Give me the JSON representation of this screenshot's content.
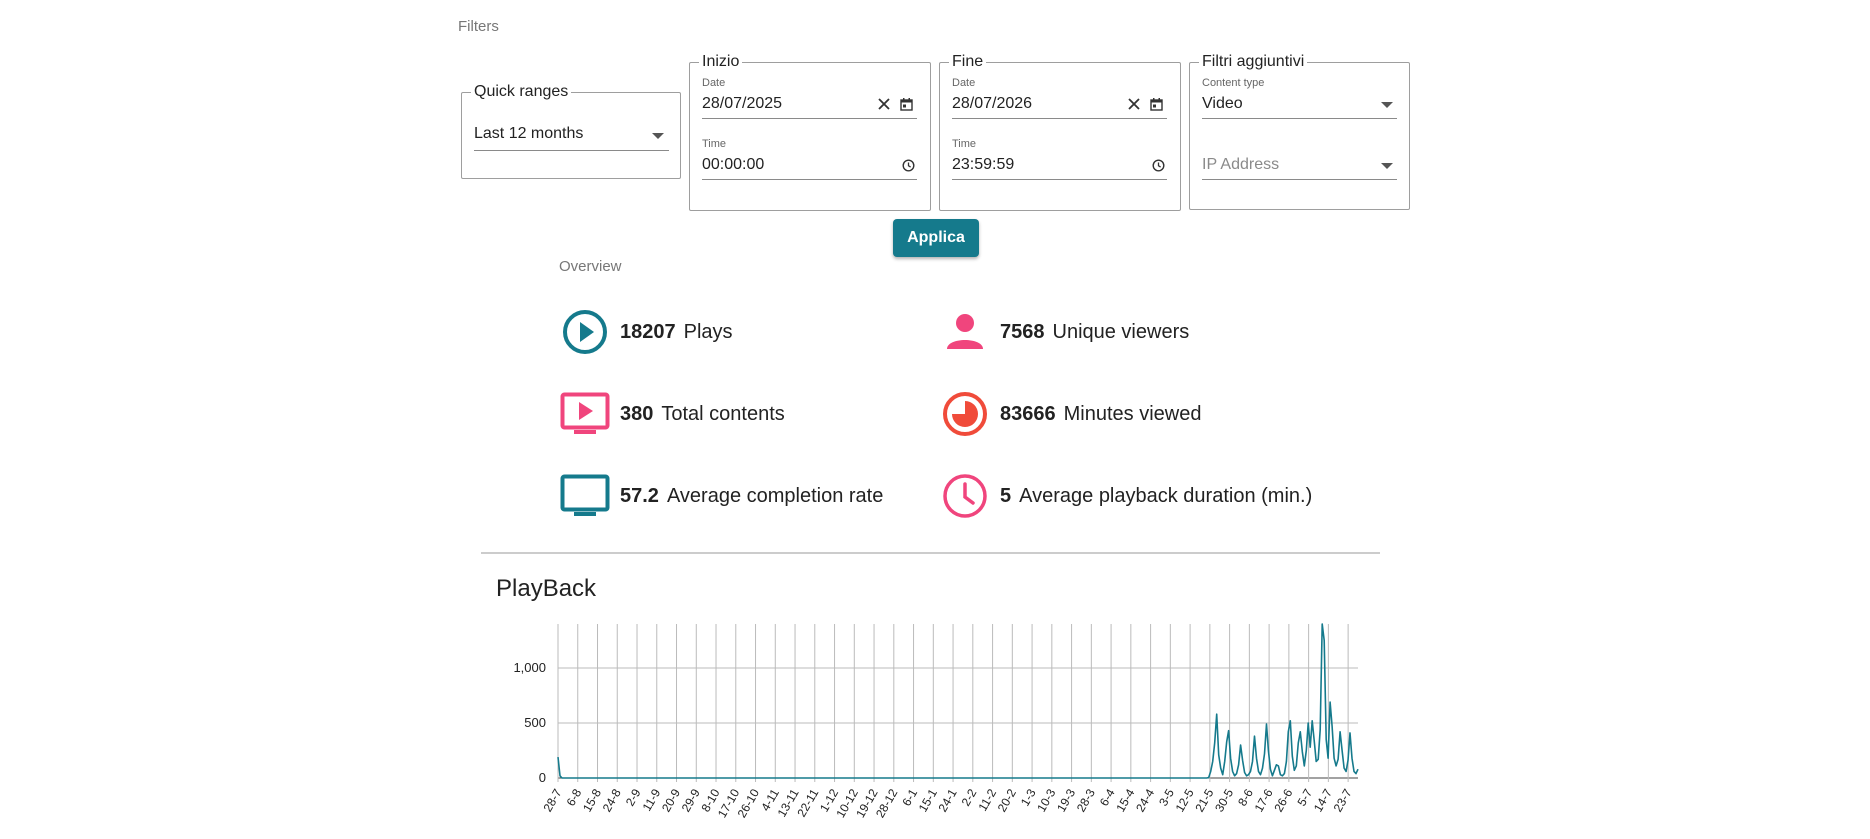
{
  "filters": {
    "title": "Filters",
    "quick_ranges": {
      "legend": "Quick ranges",
      "value": "Last 12 months"
    },
    "start": {
      "legend": "Inizio",
      "date_label": "Date",
      "date_value": "28/07/2025",
      "time_label": "Time",
      "time_value": "00:00:00"
    },
    "end": {
      "legend": "Fine",
      "date_label": "Date",
      "date_value": "28/07/2026",
      "time_label": "Time",
      "time_value": "23:59:59"
    },
    "extra": {
      "legend": "Filtri aggiuntivi",
      "content_type_label": "Content type",
      "content_type_value": "Video",
      "ip_placeholder": "IP Address"
    },
    "apply_label": "Applica"
  },
  "overview": {
    "title": "Overview",
    "stats": [
      {
        "value": "18207",
        "label": "Plays",
        "icon": "play-circle-icon",
        "color": "#157a8c"
      },
      {
        "value": "7568",
        "label": "Unique viewers",
        "icon": "person-icon",
        "color": "#f0457d"
      },
      {
        "value": "380",
        "label": "Total contents",
        "icon": "tv-play-icon",
        "color": "#f0457d"
      },
      {
        "value": "83666",
        "label": "Minutes viewed",
        "icon": "pie-timer-icon",
        "color": "#f04b3a"
      },
      {
        "value": "57.2",
        "label": "Average completion rate",
        "icon": "monitor-icon",
        "color": "#157a8c"
      },
      {
        "value": "5",
        "label": "Average playback duration (min.)",
        "icon": "clock-icon",
        "color": "#f0457d"
      }
    ]
  },
  "chart_data": {
    "type": "line",
    "title": "PlayBack",
    "color": "#157a8c",
    "ylim": [
      0,
      1400
    ],
    "yticks": [
      0,
      500,
      1000
    ],
    "ytick_labels": [
      "0",
      "500",
      "1,000"
    ],
    "grid": true,
    "xlabels": [
      "28-7",
      "6-8",
      "15-8",
      "24-8",
      "2-9",
      "11-9",
      "20-9",
      "29-9",
      "8-10",
      "17-10",
      "26-10",
      "4-11",
      "13-11",
      "22-11",
      "1-12",
      "10-12",
      "19-12",
      "28-12",
      "6-1",
      "15-1",
      "24-1",
      "2-2",
      "11-2",
      "20-2",
      "1-3",
      "10-3",
      "19-3",
      "28-3",
      "6-4",
      "15-4",
      "24-4",
      "3-5",
      "12-5",
      "21-5",
      "30-5",
      "8-6",
      "17-6",
      "26-6",
      "5-7",
      "14-7",
      "23-7"
    ],
    "series": [
      {
        "values": [
          190,
          20,
          0,
          0,
          0,
          0,
          0,
          0,
          0,
          0,
          0,
          0,
          0,
          0,
          0,
          0,
          0,
          0,
          0,
          0,
          0,
          0,
          0,
          0,
          0,
          0,
          0,
          0,
          0,
          0,
          0,
          0,
          0,
          0,
          0,
          0,
          0,
          0,
          0,
          0,
          0,
          0,
          0,
          0,
          0,
          0,
          0,
          0,
          0,
          0,
          0,
          0,
          0,
          0,
          0,
          0,
          0,
          0,
          0,
          0,
          0,
          0,
          0,
          0,
          0,
          0,
          0,
          0,
          0,
          0,
          0,
          0,
          0,
          0,
          0,
          0,
          0,
          0,
          0,
          0,
          0,
          0,
          0,
          0,
          0,
          0,
          0,
          0,
          0,
          0,
          0,
          0,
          0,
          0,
          0,
          0,
          0,
          0,
          0,
          0,
          0,
          0,
          0,
          0,
          0,
          0,
          0,
          0,
          0,
          0,
          0,
          0,
          0,
          0,
          0,
          0,
          0,
          0,
          0,
          0,
          0,
          0,
          0,
          0,
          0,
          0,
          0,
          0,
          0,
          0,
          0,
          0,
          0,
          0,
          0,
          0,
          0,
          0,
          0,
          0,
          0,
          0,
          0,
          0,
          0,
          0,
          0,
          0,
          0,
          0,
          0,
          0,
          0,
          0,
          0,
          0,
          0,
          0,
          0,
          0,
          0,
          0,
          0,
          0,
          0,
          0,
          0,
          0,
          0,
          0,
          0,
          0,
          0,
          0,
          0,
          0,
          0,
          0,
          0,
          0,
          0,
          0,
          0,
          0,
          0,
          0,
          0,
          0,
          0,
          0,
          0,
          0,
          0,
          0,
          0,
          0,
          0,
          0,
          0,
          0,
          0,
          0,
          0,
          0,
          0,
          0,
          0,
          0,
          0,
          0,
          0,
          0,
          0,
          0,
          0,
          0,
          0,
          0,
          0,
          0,
          0,
          0,
          0,
          0,
          0,
          0,
          0,
          0,
          0,
          0,
          0,
          0,
          0,
          0,
          0,
          0,
          0,
          0,
          0,
          0,
          0,
          0,
          0,
          0,
          0,
          0,
          0,
          0,
          0,
          0,
          0,
          0,
          0,
          0,
          0,
          0,
          0,
          0,
          0,
          0,
          0,
          0,
          0,
          0,
          0,
          0,
          0,
          0,
          0,
          0,
          0,
          0,
          0,
          0,
          0,
          0,
          0,
          0,
          0,
          0,
          0,
          0,
          0,
          0,
          0,
          0,
          0,
          0,
          0,
          0,
          0,
          0,
          0,
          0,
          0,
          0,
          0,
          0,
          0,
          0,
          0,
          0,
          0,
          0,
          0,
          0,
          0,
          0,
          0,
          0,
          0,
          0,
          0,
          0,
          0,
          0,
          0,
          0,
          0,
          0,
          0,
          0,
          0,
          0,
          0,
          0,
          0,
          5,
          60,
          150,
          320,
          580,
          210,
          90,
          30,
          150,
          330,
          430,
          180,
          60,
          20,
          40,
          120,
          300,
          160,
          50,
          20,
          30,
          60,
          150,
          380,
          180,
          60,
          30,
          90,
          220,
          490,
          250,
          80,
          20,
          70,
          120,
          110,
          30,
          20,
          40,
          150,
          420,
          520,
          200,
          70,
          110,
          320,
          420,
          240,
          110,
          250,
          500,
          280,
          520,
          340,
          150,
          170,
          440,
          1400,
          1250,
          350,
          180,
          690,
          470,
          180,
          110,
          170,
          420,
          250,
          90,
          60,
          160,
          410,
          180,
          60,
          40,
          80
        ]
      }
    ]
  }
}
